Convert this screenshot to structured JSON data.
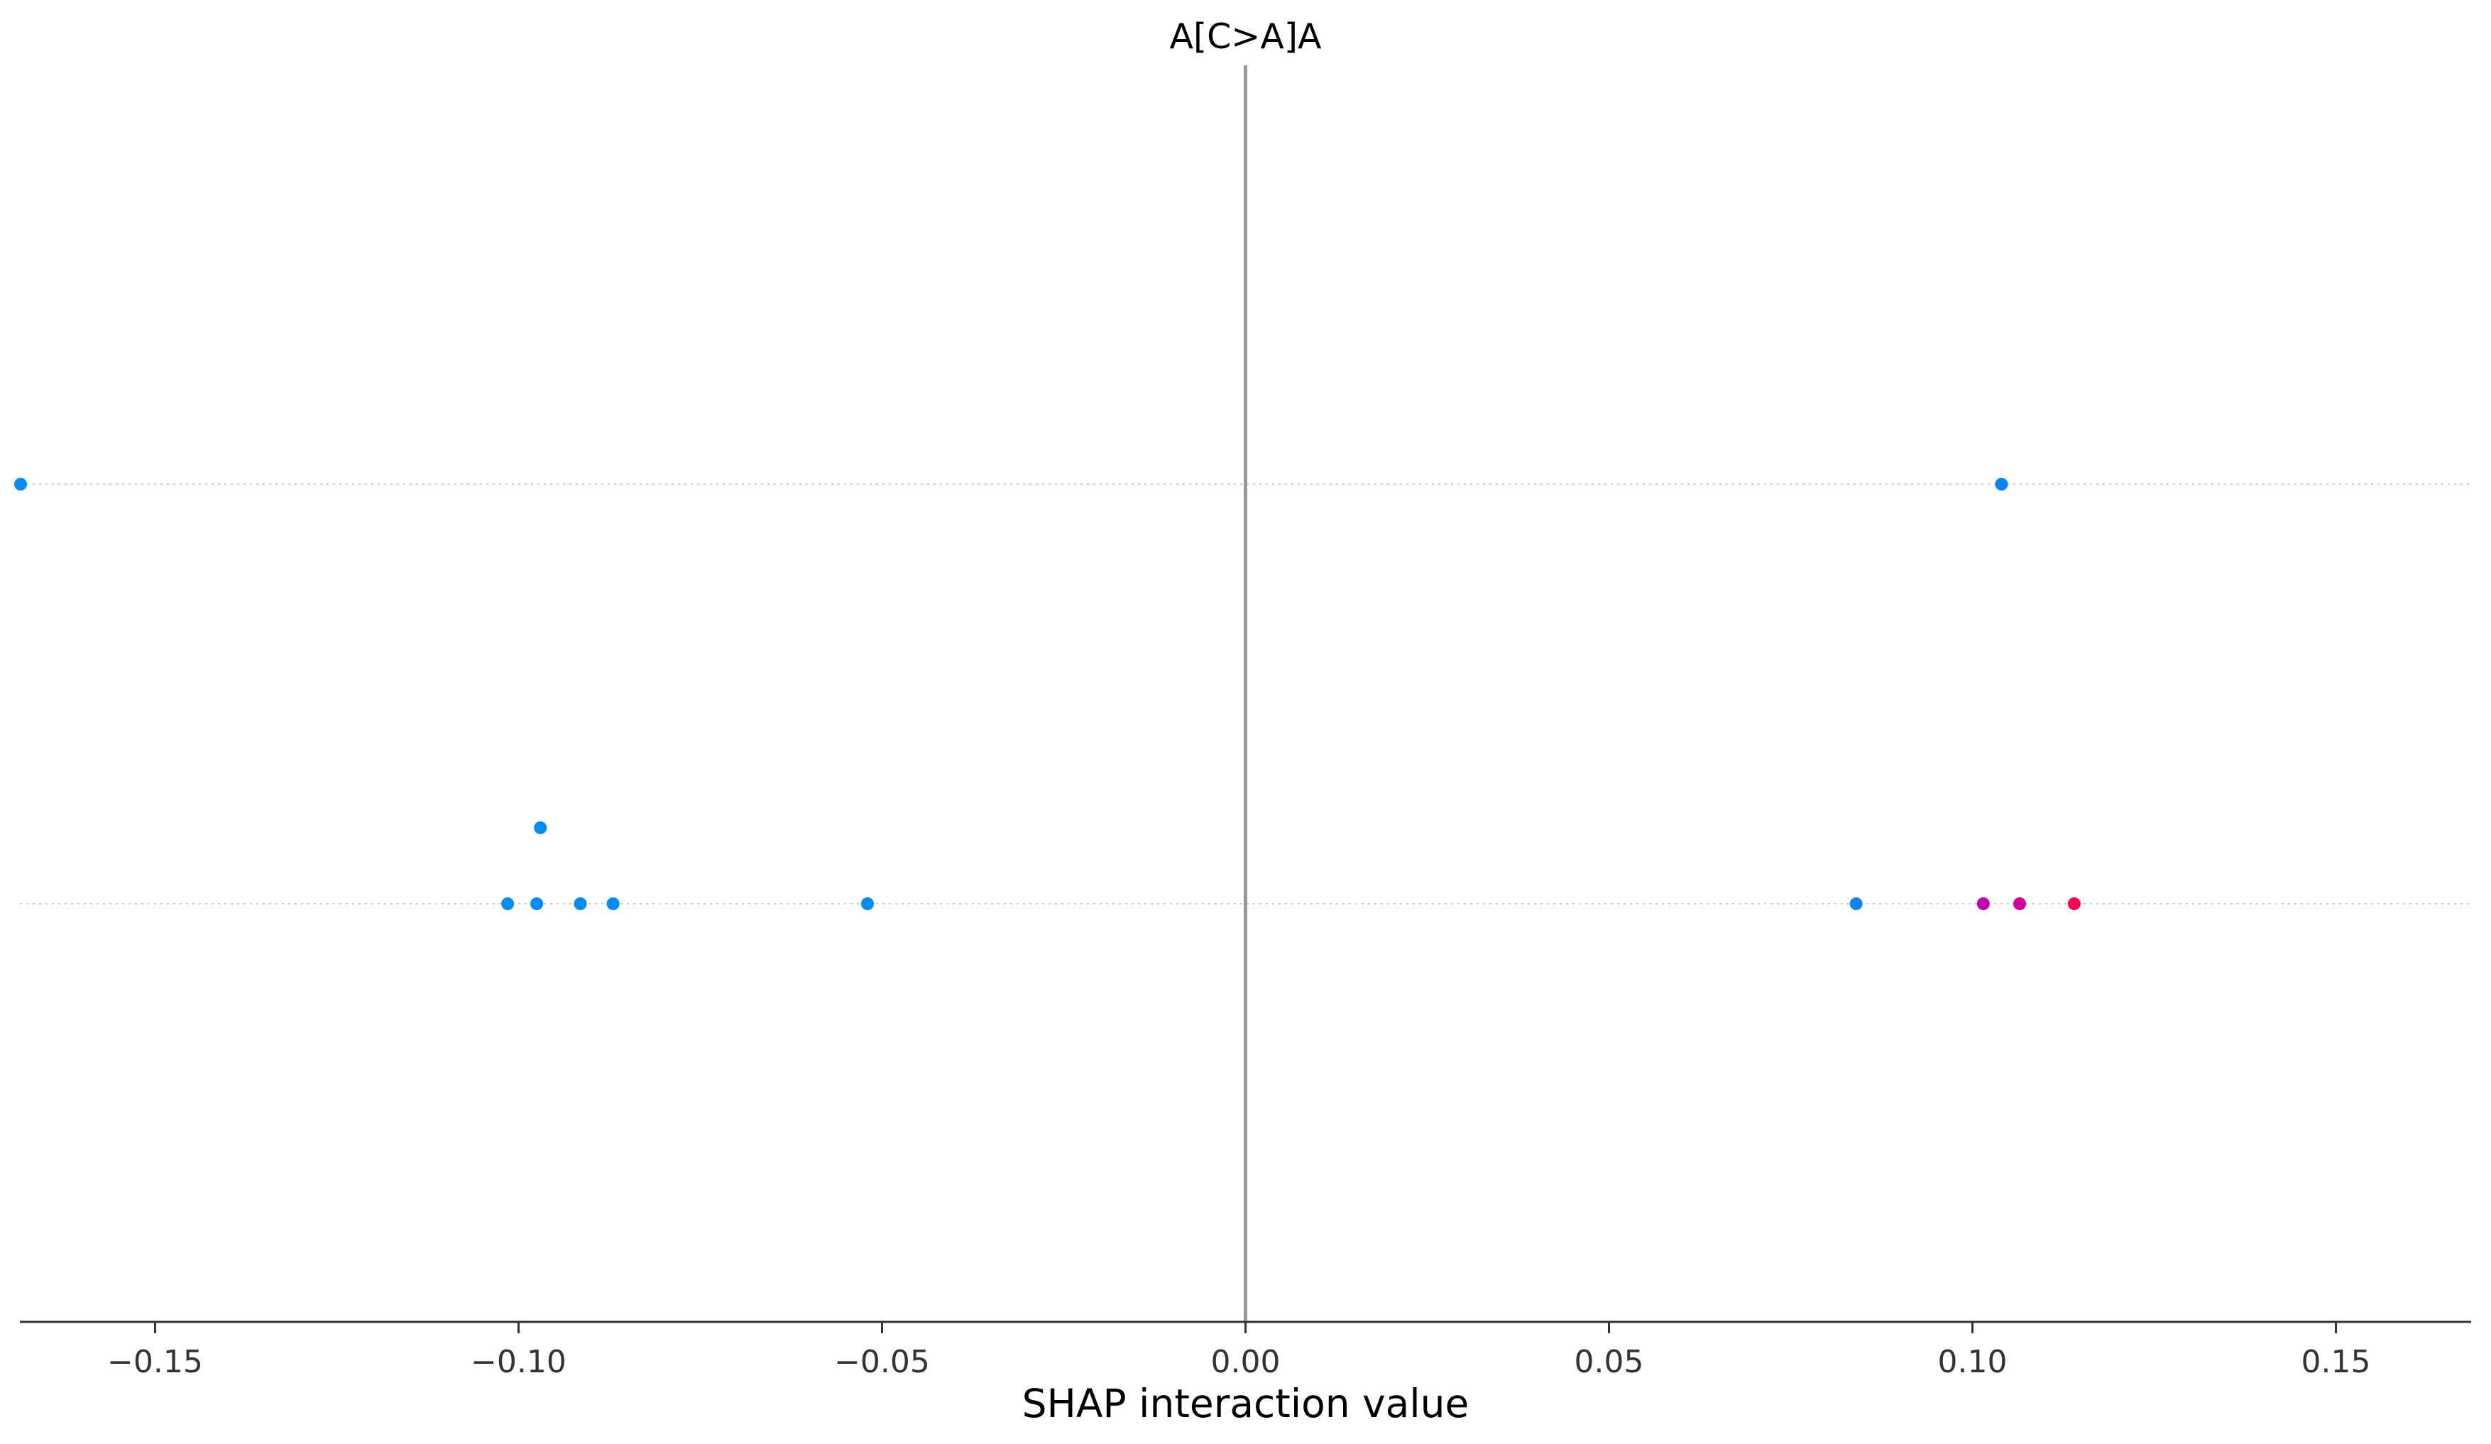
{
  "chart_data": {
    "type": "scatter",
    "title": "A[C>A]A",
    "xlabel": "SHAP interaction value",
    "ylabel": "",
    "xlim": [
      -0.1686,
      0.1686
    ],
    "x_ticks": [
      -0.15,
      -0.1,
      -0.05,
      0.0,
      0.05,
      0.1,
      0.15
    ],
    "x_tick_labels": [
      "−0.15",
      "−0.10",
      "−0.05",
      "0.00",
      "0.05",
      "0.10",
      "0.15"
    ],
    "zero_line": true,
    "grid": false,
    "row_guides": "dotted",
    "rows": [
      {
        "points": [
          {
            "x": -0.1685,
            "color": "#008bfa"
          },
          {
            "x": 0.104,
            "color": "#0f82f8"
          }
        ]
      },
      {
        "points": [
          {
            "x": -0.1015,
            "color": "#008bfa"
          },
          {
            "x": -0.0975,
            "color": "#008bfa"
          },
          {
            "x": -0.097,
            "color": "#008bfa",
            "stacked": true
          },
          {
            "x": -0.0915,
            "color": "#008bfa"
          },
          {
            "x": -0.087,
            "color": "#008bfa"
          },
          {
            "x": -0.052,
            "color": "#008bfa"
          },
          {
            "x": 0.084,
            "color": "#0f82f8"
          },
          {
            "x": 0.1015,
            "color": "#c401b0"
          },
          {
            "x": 0.1065,
            "color": "#d0009c"
          },
          {
            "x": 0.114,
            "color": "#ff0052"
          }
        ]
      }
    ],
    "colors": {
      "zero_line": "#999999",
      "axis": "#333333",
      "row_guide": "#cccccc"
    }
  }
}
